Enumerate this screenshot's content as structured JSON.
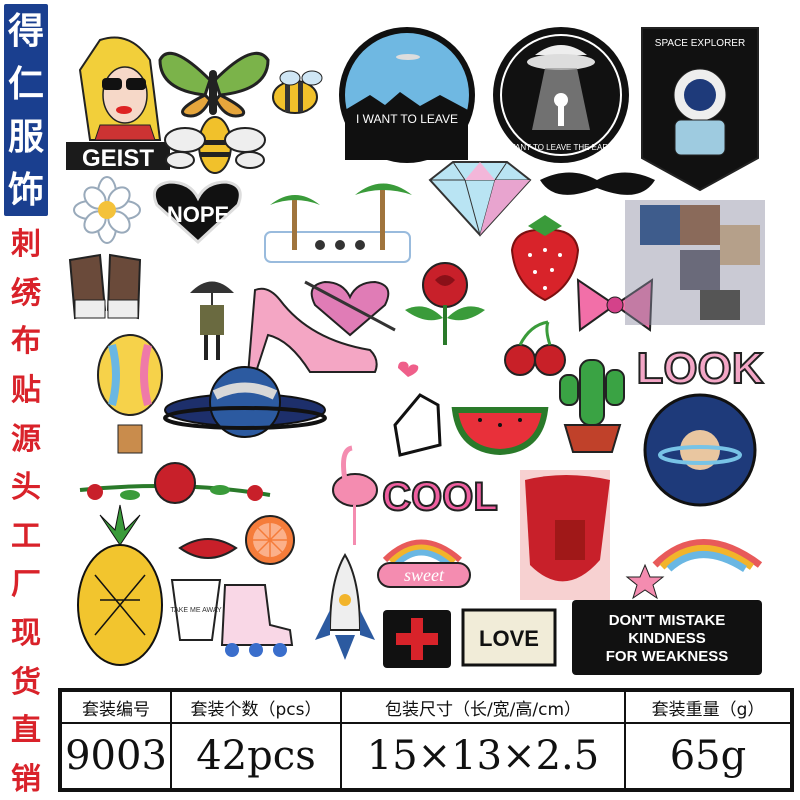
{
  "brand": {
    "chars": [
      "得",
      "仁",
      "服",
      "饰"
    ]
  },
  "slogan": {
    "chars": [
      "刺",
      "绣",
      "布",
      "贴",
      "源",
      "头",
      "工",
      "厂",
      "现",
      "货",
      "直",
      "销"
    ]
  },
  "patches": {
    "geist": "GEIST",
    "leave": "I WANT TO LEAVE",
    "earth": "I WANT TO LEAVE THE EARTH",
    "space": "SPACE EXPLORER",
    "nope": "NOPE",
    "look": "LOOK",
    "cool": "COOL",
    "sweet": "sweet",
    "take": "TAKE ME AWAY",
    "love": "LOVE",
    "kindness": [
      "DON'T MISTAKE",
      "KINDNESS",
      "FOR WEAKNESS"
    ]
  },
  "spec": {
    "headers": [
      "套装编号",
      "套装个数（pcs）",
      "包装尺寸（长/宽/高/cm）",
      "套装重量（g）"
    ],
    "values": [
      "9003",
      "42pcs",
      "15×13×2.5",
      "65g"
    ]
  },
  "colors": {
    "brand": "#1a3f8f",
    "slogan": "#d9222a"
  }
}
